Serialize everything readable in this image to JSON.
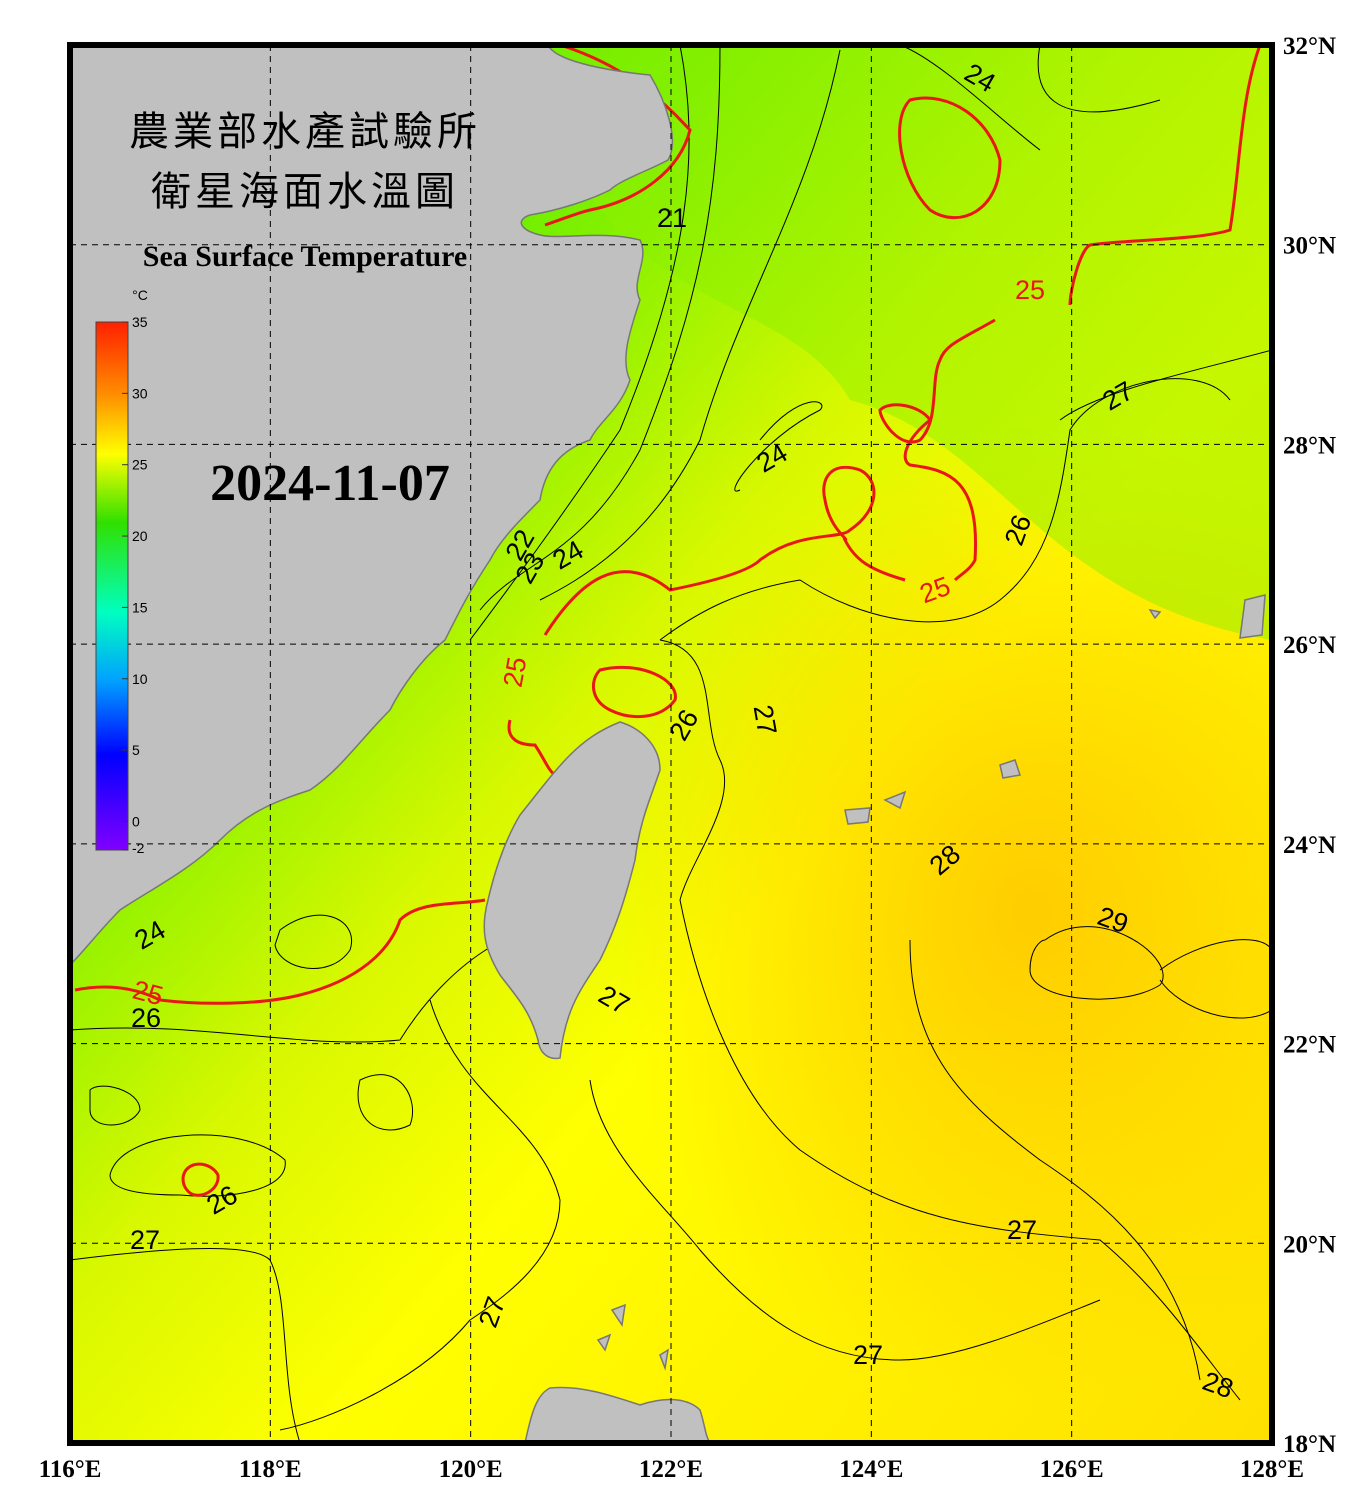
{
  "header": {
    "title_line1": "農業部水產試驗所",
    "title_line2": "衛星海面水溫圖",
    "title_en": "Sea Surface Temperature",
    "date": "2024-11-07"
  },
  "colorbar": {
    "unit": "°C",
    "ticks": [
      35,
      30,
      25,
      20,
      15,
      10,
      5,
      0,
      -2
    ]
  },
  "map": {
    "lon_ticks": [
      {
        "value": 116,
        "label": "116°E"
      },
      {
        "value": 118,
        "label": "118°E"
      },
      {
        "value": 120,
        "label": "120°E"
      },
      {
        "value": 122,
        "label": "122°E"
      },
      {
        "value": 124,
        "label": "124°E"
      },
      {
        "value": 126,
        "label": "126°E"
      },
      {
        "value": 128,
        "label": "128°E"
      }
    ],
    "lat_ticks": [
      {
        "value": 32,
        "label": "32°N"
      },
      {
        "value": 30,
        "label": "30°N"
      },
      {
        "value": 28,
        "label": "28°N"
      },
      {
        "value": 26,
        "label": "26°N"
      },
      {
        "value": 24,
        "label": "24°N"
      },
      {
        "value": 22,
        "label": "22°N"
      },
      {
        "value": 20,
        "label": "20°N"
      },
      {
        "value": 18,
        "label": "18°N"
      }
    ],
    "highlight_isotherm": 25,
    "contour_labels": [
      24,
      21,
      25,
      27,
      24,
      26,
      25,
      22,
      23,
      24,
      25,
      27,
      26,
      28,
      29,
      24,
      25,
      26,
      27,
      26,
      27,
      27,
      27,
      27,
      28
    ]
  }
}
